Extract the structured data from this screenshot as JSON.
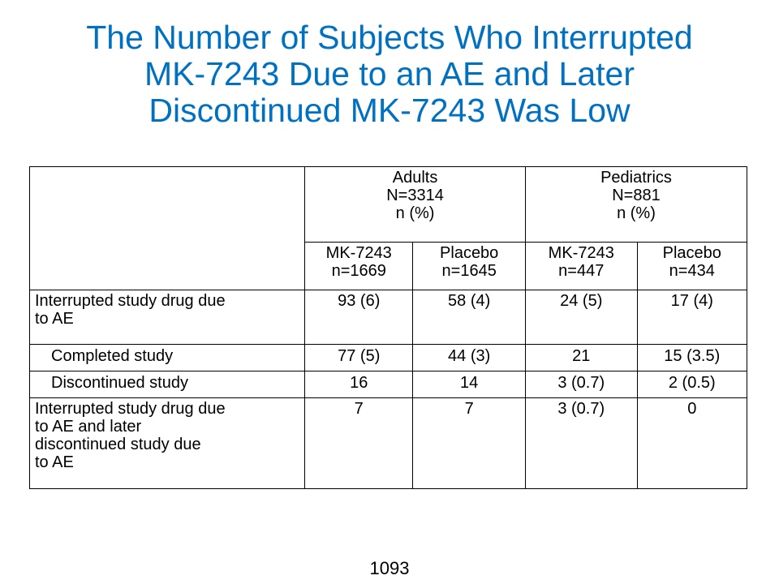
{
  "title": {
    "line1": "The Number of Subjects Who Interrupted",
    "line2": "MK-7243 Due to an AE and Later",
    "line3": "Discontinued MK-7243 Was Low"
  },
  "table": {
    "groups": [
      {
        "line1": "Adults",
        "line2": "N=3314",
        "line3": "n (%)"
      },
      {
        "line1": "Pediatrics",
        "line2": "N=881",
        "line3": "n (%)"
      }
    ],
    "columns": [
      {
        "line1": "MK-7243",
        "line2": "n=1669"
      },
      {
        "line1": "Placebo",
        "line2": "n=1645"
      },
      {
        "line1": "MK-7243",
        "line2": "n=447"
      },
      {
        "line1": "Placebo",
        "line2": "n=434"
      }
    ],
    "rows": [
      {
        "label_lines": [
          "Interrupted study drug due",
          "to AE"
        ],
        "values": [
          "93 (6)",
          "58 (4)",
          "24 (5)",
          "17 (4)"
        ]
      },
      {
        "label_lines": [
          "Completed study"
        ],
        "values": [
          "77 (5)",
          "44 (3)",
          "21",
          "15 (3.5)"
        ]
      },
      {
        "label_lines": [
          "Discontinued study"
        ],
        "values": [
          "16",
          "14",
          "3 (0.7)",
          "2 (0.5)"
        ]
      },
      {
        "label_lines": [
          "Interrupted study drug due",
          "to AE and later",
          "discontinued study due",
          "to AE"
        ],
        "values": [
          "7",
          "7",
          "3 (0.7)",
          "0"
        ]
      }
    ]
  },
  "page_number": "1093",
  "colors": {
    "title": "#0070c0",
    "header_rule": "#0070c0"
  }
}
